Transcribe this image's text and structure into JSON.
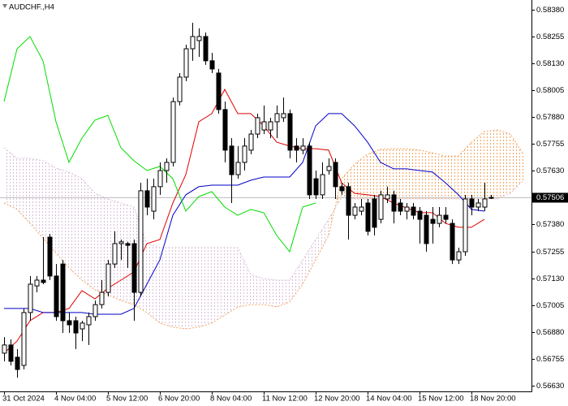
{
  "chart_data": {
    "type": "candlestick",
    "title": "AUDCHF.,H4",
    "categories": [
      "31 Oct 2024",
      null,
      null,
      null,
      null,
      null,
      null,
      null,
      "4 Nov 04:00",
      null,
      null,
      null,
      null,
      null,
      null,
      null,
      "5 Nov 12:00",
      null,
      null,
      null,
      null,
      null,
      null,
      null,
      "6 Nov 20:00",
      null,
      null,
      null,
      null,
      null,
      null,
      null,
      "8 Nov 04:00",
      null,
      null,
      null,
      null,
      null,
      null,
      null,
      "11 Nov 12:00",
      null,
      null,
      null,
      null,
      null,
      null,
      null,
      "12 Nov 20:00",
      null,
      null,
      null,
      null,
      null,
      null,
      null,
      "14 Nov 04:00",
      null,
      null,
      null,
      null,
      null,
      null,
      null,
      "15 Nov 12:00",
      null,
      null,
      null,
      null,
      null,
      null,
      null,
      "18 Nov 20:00",
      null,
      null,
      null
    ],
    "open": [
      0.56781,
      0.56819,
      0.56762,
      0.56724,
      0.5697,
      0.57094,
      0.57121,
      0.57321,
      0.5714,
      0.57196,
      0.56932,
      0.56932,
      0.56894,
      0.56913,
      0.56951,
      0.57007,
      0.57064,
      0.57196,
      0.57291,
      0.57291,
      0.57291,
      0.57064,
      0.57537,
      0.57442,
      0.57556,
      0.57631,
      0.57669,
      0.57952,
      0.58066,
      0.58198,
      0.58236,
      0.58255,
      0.58142,
      0.58085,
      0.57915,
      0.57745,
      0.57612,
      0.57669,
      0.57726,
      0.57801,
      0.5782,
      0.5782,
      0.57858,
      0.57877,
      0.57896,
      0.57745,
      0.57726,
      0.57745,
      0.57593,
      0.57518,
      0.57631,
      0.57669,
      0.57556,
      0.57556,
      0.57423,
      0.57442,
      0.5748,
      0.57499,
      0.57404,
      0.57499,
      0.57518,
      0.5748,
      0.57442,
      0.57461,
      0.57442,
      0.57423,
      0.57404,
      0.57385,
      0.57423,
      0.57385,
      0.57215,
      0.57253,
      0.57499,
      0.57461,
      0.57461,
      0.57506
    ],
    "high": [
      0.56856,
      0.56845,
      0.568,
      0.56989,
      0.5714,
      0.5714,
      0.57321,
      0.57336,
      0.57196,
      0.57215,
      0.5697,
      0.56951,
      0.56932,
      0.5697,
      0.57026,
      0.57121,
      0.57215,
      0.57348,
      0.5731,
      0.57299,
      0.5731,
      0.57574,
      0.57593,
      0.57593,
      0.57669,
      0.57688,
      0.57971,
      0.58085,
      0.58217,
      0.58319,
      0.58293,
      0.58274,
      0.58179,
      0.58104,
      0.57952,
      0.57782,
      0.57745,
      0.57782,
      0.5782,
      0.57896,
      0.57934,
      0.57877,
      0.57934,
      0.57971,
      0.57915,
      0.57782,
      0.57782,
      0.57763,
      0.57631,
      0.57669,
      0.57688,
      0.57688,
      0.57574,
      0.57574,
      0.5748,
      0.57499,
      0.57499,
      0.57518,
      0.57537,
      0.57556,
      0.57537,
      0.57499,
      0.5748,
      0.5748,
      0.57461,
      0.57442,
      0.57461,
      0.57461,
      0.57461,
      0.57404,
      0.57272,
      0.57518,
      0.57518,
      0.57499,
      0.57574,
      0.57518
    ],
    "low": [
      0.56743,
      0.56724,
      0.56667,
      0.56705,
      0.56932,
      0.57064,
      0.57102,
      0.57121,
      0.56932,
      0.56875,
      0.56875,
      0.568,
      0.56837,
      0.56819,
      0.56932,
      0.56989,
      0.57045,
      0.57178,
      0.57215,
      0.57178,
      0.56932,
      0.57045,
      0.57423,
      0.57404,
      0.57518,
      0.57574,
      0.5765,
      0.57934,
      0.58047,
      0.58142,
      0.5816,
      0.58123,
      0.58085,
      0.57896,
      0.57669,
      0.5748,
      0.57593,
      0.57631,
      0.57707,
      0.57782,
      0.57801,
      0.57782,
      0.57782,
      0.57858,
      0.57688,
      0.57669,
      0.57707,
      0.57499,
      0.57499,
      0.57499,
      0.57612,
      0.57499,
      0.57518,
      0.5731,
      0.57404,
      0.57423,
      0.57329,
      0.57329,
      0.57385,
      0.5748,
      0.57385,
      0.57423,
      0.57404,
      0.57404,
      0.57291,
      0.57253,
      0.57291,
      0.57367,
      0.57385,
      0.57196,
      0.57196,
      0.57234,
      0.57423,
      0.57442,
      0.57442,
      0.57499
    ],
    "close": [
      0.56819,
      0.56743,
      0.56705,
      0.5697,
      0.57102,
      0.57121,
      0.5711,
      0.5714,
      0.56951,
      0.56932,
      0.56913,
      0.56875,
      0.56921,
      0.56951,
      0.57007,
      0.57064,
      0.57196,
      0.57291,
      0.57299,
      0.57283,
      0.57064,
      0.57537,
      0.57461,
      0.57556,
      0.57631,
      0.57669,
      0.57952,
      0.58066,
      0.58198,
      0.58255,
      0.58255,
      0.58142,
      0.58104,
      0.57915,
      0.57726,
      0.57612,
      0.57669,
      0.57745,
      0.57801,
      0.57877,
      0.57858,
      0.57858,
      0.57896,
      0.57896,
      0.57726,
      0.57726,
      0.57745,
      0.57518,
      0.57518,
      0.57612,
      0.5765,
      0.57556,
      0.57537,
      0.57423,
      0.57461,
      0.57461,
      0.57348,
      0.57367,
      0.57518,
      0.57518,
      0.57442,
      0.57442,
      0.57461,
      0.57423,
      0.57404,
      0.57291,
      0.57385,
      0.57423,
      0.57404,
      0.57215,
      0.57253,
      0.57499,
      0.57461,
      0.5748,
      0.57499,
      0.57506
    ],
    "up_color": "#ffffff",
    "down_color": "#000000",
    "ylim": [
      0.56603,
      0.58425
    ],
    "yticks": [
      {
        "value": 0.5838,
        "label": "0.58380"
      },
      {
        "value": 0.58255,
        "label": "0.58255"
      },
      {
        "value": 0.5813,
        "label": "0.58130"
      },
      {
        "value": 0.58005,
        "label": "0.58005"
      },
      {
        "value": 0.5788,
        "label": "0.57880"
      },
      {
        "value": 0.57755,
        "label": "0.57755"
      },
      {
        "value": 0.5763,
        "label": "0.57630"
      },
      {
        "value": 0.5738,
        "label": "0.57380"
      },
      {
        "value": 0.57255,
        "label": "0.57255"
      },
      {
        "value": 0.5713,
        "label": "0.57130"
      },
      {
        "value": 0.57005,
        "label": "0.57005"
      },
      {
        "value": 0.5688,
        "label": "0.56880"
      },
      {
        "value": 0.56755,
        "label": "0.56755"
      },
      {
        "value": 0.5663,
        "label": "0.56630"
      }
    ],
    "last_price": {
      "value": 0.57506,
      "label": "0.57506"
    },
    "lines": [
      {
        "color": "#e00000",
        "x": [
          0,
          2,
          4,
          6,
          8,
          10,
          12,
          14,
          16,
          18,
          20,
          22,
          24,
          26,
          28,
          30,
          32,
          34,
          36,
          38,
          40,
          42,
          44,
          46,
          48,
          50,
          52,
          54,
          56,
          58,
          60,
          62,
          64,
          66,
          68,
          70,
          72,
          74
        ],
        "values": [
          0.56781,
          0.56837,
          0.56932,
          0.5697,
          0.5697,
          0.56989,
          0.57072,
          0.57034,
          0.57083,
          0.57121,
          0.57159,
          0.57291,
          0.5731,
          0.5748,
          0.57612,
          0.57858,
          0.57896,
          0.58009,
          0.57896,
          0.57896,
          0.57839,
          0.57763,
          0.57745,
          0.57733,
          0.57733,
          0.57726,
          0.57574,
          0.57525,
          0.57518,
          0.5751,
          0.5748,
          0.57457,
          0.57435,
          0.57435,
          0.57385,
          0.57367,
          0.57367,
          0.57404
        ]
      },
      {
        "color": "#0000c8",
        "x": [
          0,
          2,
          4,
          6,
          8,
          10,
          12,
          14,
          16,
          18,
          20,
          22,
          24,
          26,
          28,
          30,
          32,
          34,
          36,
          38,
          40,
          42,
          44,
          46,
          48,
          50,
          52,
          54,
          56,
          58,
          60,
          62,
          64,
          66,
          68,
          70,
          72,
          74
        ],
        "values": [
          0.56989,
          0.56989,
          0.56989,
          0.5697,
          0.5697,
          0.5697,
          0.5697,
          0.56962,
          0.56962,
          0.56962,
          0.56989,
          0.57102,
          0.57215,
          0.57423,
          0.57518,
          0.57556,
          0.57563,
          0.57563,
          0.57563,
          0.57586,
          0.57601,
          0.57601,
          0.57601,
          0.57669,
          0.57839,
          0.57896,
          0.57896,
          0.57839,
          0.57763,
          0.57669,
          0.57639,
          0.57639,
          0.57631,
          0.57624,
          0.57574,
          0.57518,
          0.5745,
          0.57442
        ]
      },
      {
        "color": "#00dc00",
        "x": [
          0,
          2,
          4,
          6,
          8,
          10,
          12,
          14,
          16,
          18,
          20,
          22,
          24,
          26,
          28,
          30,
          32,
          34,
          36,
          38,
          40,
          42,
          44,
          46,
          48
        ],
        "values": [
          0.57952,
          0.58198,
          0.58255,
          0.58142,
          0.57858,
          0.57669,
          0.57782,
          0.57866,
          0.57888,
          0.57737,
          0.57677,
          0.57631,
          0.5765,
          0.57593,
          0.57442,
          0.5751,
          0.57533,
          0.57461,
          0.57423,
          0.5745,
          0.57435,
          0.57329,
          0.57253,
          0.57461,
          0.5748
        ]
      }
    ],
    "cloud": {
      "x": [
        0,
        2,
        4,
        6,
        8,
        10,
        12,
        14,
        16,
        18,
        20,
        22,
        24,
        26,
        28,
        30,
        32,
        34,
        36,
        38,
        40,
        42,
        44,
        46,
        48,
        50,
        52,
        54,
        56,
        58,
        60,
        62,
        64,
        66,
        68,
        70,
        72,
        74,
        76,
        78,
        80
      ],
      "span_a": [
        0.5748,
        0.5745,
        0.57385,
        0.57317,
        0.57246,
        0.57178,
        0.57121,
        0.57076,
        0.57053,
        0.57026,
        0.57007,
        0.5697,
        0.56921,
        0.56902,
        0.56894,
        0.56902,
        0.56921,
        0.56958,
        0.56996,
        0.57007,
        0.57007,
        0.56996,
        0.57019,
        0.57102,
        0.57215,
        0.57329,
        0.57593,
        0.57661,
        0.57707,
        0.5773,
        0.57733,
        0.57733,
        0.57726,
        0.57714,
        0.57699,
        0.57699,
        0.57763,
        0.57813,
        0.5782,
        0.57801,
        0.57707
      ],
      "span_b": [
        0.57737,
        0.57688,
        0.57688,
        0.57677,
        0.57643,
        0.57624,
        0.57593,
        0.57525,
        0.57499,
        0.5748,
        0.57461,
        0.57291,
        0.57272,
        0.57272,
        0.57272,
        0.57272,
        0.57272,
        0.57272,
        0.57272,
        0.57147,
        0.57128,
        0.57121,
        0.57121,
        0.57215,
        0.5731,
        0.57404,
        0.57506,
        0.57499,
        0.57499,
        0.57499,
        0.57499,
        0.57499,
        0.57499,
        0.57499,
        0.57499,
        0.57499,
        0.57499,
        0.57499,
        0.57499,
        0.57525,
        0.57586
      ],
      "up_color": "#f4a460",
      "down_color": "#d8bfd8"
    }
  }
}
